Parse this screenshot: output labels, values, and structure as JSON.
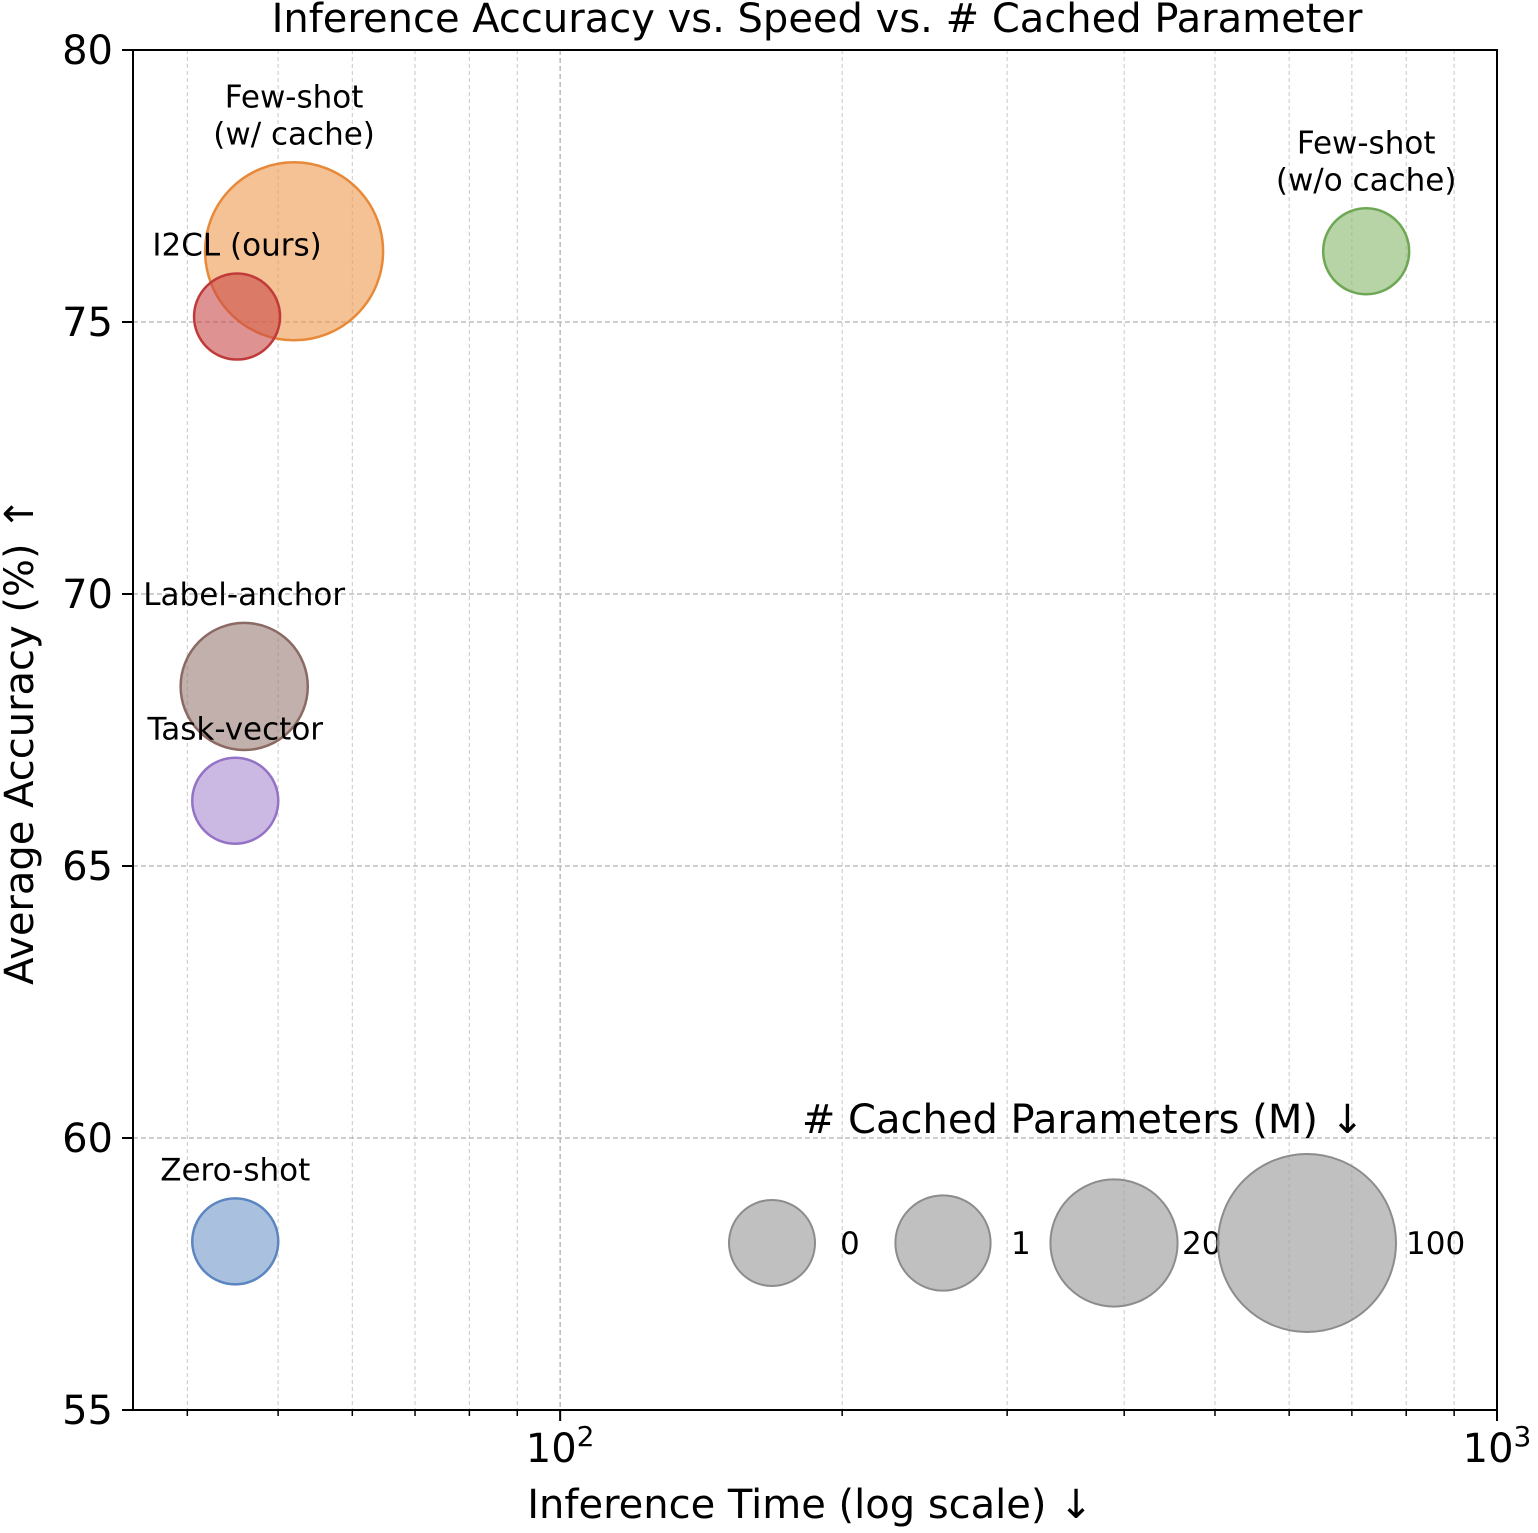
{
  "chart_data": {
    "type": "scatter",
    "title": "Inference Accuracy vs. Speed vs. # Cached Parameter",
    "xlabel": "Inference Time (log scale) ↓",
    "ylabel": "Average Accuracy (%) ↑",
    "x_scale": "log",
    "xlim": [
      35,
      1000
    ],
    "ylim": [
      55,
      80
    ],
    "x_ticks": [
      {
        "value": 100,
        "label": "10",
        "exp": "2"
      },
      {
        "value": 1000,
        "label": "10",
        "exp": "3"
      }
    ],
    "y_ticks": [
      55,
      60,
      65,
      70,
      75,
      80
    ],
    "grid": true,
    "points": [
      {
        "name": "Zero-shot",
        "label_lines": [
          "Zero-shot"
        ],
        "x": 45,
        "y": 58.1,
        "cached_params_m": 0,
        "color": "#6f97c9",
        "edge": "#5b86c0"
      },
      {
        "name": "Task-vector",
        "label_lines": [
          "Task-vector"
        ],
        "x": 45,
        "y": 66.2,
        "cached_params_m": 0,
        "color": "#a88ad0",
        "edge": "#9472c6"
      },
      {
        "name": "Label-anchor",
        "label_lines": [
          "Label-anchor"
        ],
        "x": 46,
        "y": 68.3,
        "cached_params_m": 20,
        "color": "#9a7b74",
        "edge": "#8a6a62"
      },
      {
        "name": "Few-shot (w/ cache)",
        "label_lines": [
          "Few-shot",
          "(w/ cache)"
        ],
        "x": 52,
        "y": 76.3,
        "cached_params_m": 100,
        "color": "#ee9a4e",
        "edge": "#e8893a"
      },
      {
        "name": "I2CL (ours)",
        "label_lines": [
          "I2CL (ours)"
        ],
        "x": 45.2,
        "y": 75.1,
        "cached_params_m": 0,
        "color": "#c94a4a",
        "edge": "#c03a3a"
      },
      {
        "name": "Few-shot (w/o cache)",
        "label_lines": [
          "Few-shot",
          "(w/o cache)"
        ],
        "x": 725,
        "y": 76.3,
        "cached_params_m": 0,
        "color": "#86b86a",
        "edge": "#6fa854"
      }
    ],
    "legend": {
      "title": "# Cached Parameters (M) ↓",
      "placement": "lower-right",
      "entries": [
        {
          "label": "0",
          "size_value": 0
        },
        {
          "label": "1",
          "size_value": 1
        },
        {
          "label": "20",
          "size_value": 20
        },
        {
          "label": "100",
          "size_value": 100
        }
      ],
      "color": "#9e9e9e"
    }
  }
}
